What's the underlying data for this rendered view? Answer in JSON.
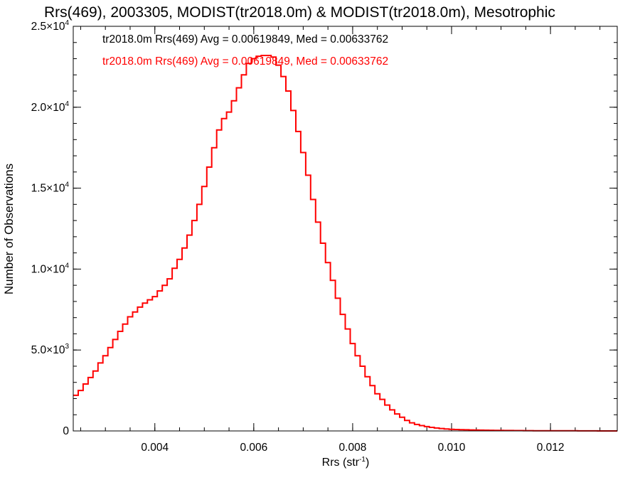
{
  "chart_data": {
    "type": "line",
    "title": "Rrs(469), 2003305, MODIST(tr2018.0m) & MODIST(tr2018.0m), Mesotrophic",
    "xlabel": "Rrs (str",
    "xlabel_sup": "-1",
    "xlabel_close": ")",
    "ylabel": "Number of Observations",
    "xlim": [
      0.00235,
      0.01335
    ],
    "ylim": [
      0,
      25000
    ],
    "x_ticks": [
      {
        "value": 0.004,
        "label": "0.004"
      },
      {
        "value": 0.006,
        "label": "0.006"
      },
      {
        "value": 0.008,
        "label": "0.008"
      },
      {
        "value": 0.01,
        "label": "0.010"
      },
      {
        "value": 0.012,
        "label": "0.012"
      }
    ],
    "y_ticks": [
      {
        "value": 0,
        "mant": "0",
        "exp": ""
      },
      {
        "value": 5000,
        "mant": "5.0×10",
        "exp": "3"
      },
      {
        "value": 10000,
        "mant": "1.0×10",
        "exp": "4"
      },
      {
        "value": 15000,
        "mant": "1.5×10",
        "exp": "4"
      },
      {
        "value": 20000,
        "mant": "2.0×10",
        "exp": "4"
      },
      {
        "value": 25000,
        "mant": "2.5×10",
        "exp": "4"
      }
    ],
    "x_minor_step": 0.0005,
    "y_minor_step": 1000,
    "legend": [
      {
        "text": "tr2018.0m Rrs(469) Avg = 0.00619849, Med = 0.00633762",
        "color": "#000000"
      },
      {
        "text": "tr2018.0m Rrs(469) Avg = 0.00619849, Med = 0.00633762",
        "color": "#ff0000"
      }
    ],
    "series": [
      {
        "name": "tr2018.0m Rrs(469)",
        "color": "#ff0000",
        "step": 0.0001,
        "x": [
          0.0024,
          0.0025,
          0.0026,
          0.0027,
          0.0028,
          0.0029,
          0.003,
          0.0031,
          0.0032,
          0.0033,
          0.0034,
          0.0035,
          0.0036,
          0.0037,
          0.0038,
          0.0039,
          0.004,
          0.0041,
          0.0042,
          0.0043,
          0.0044,
          0.0045,
          0.0046,
          0.0047,
          0.0048,
          0.0049,
          0.005,
          0.0051,
          0.0052,
          0.0053,
          0.0054,
          0.0055,
          0.0056,
          0.0057,
          0.0058,
          0.0059,
          0.006,
          0.0061,
          0.0062,
          0.0063,
          0.0064,
          0.0065,
          0.0066,
          0.0067,
          0.0068,
          0.0069,
          0.007,
          0.0071,
          0.0072,
          0.0073,
          0.0074,
          0.0075,
          0.0076,
          0.0077,
          0.0078,
          0.0079,
          0.008,
          0.0081,
          0.0082,
          0.0083,
          0.0084,
          0.0085,
          0.0086,
          0.0087,
          0.0088,
          0.0089,
          0.009,
          0.0091,
          0.0092,
          0.0093,
          0.0094,
          0.0095,
          0.0096,
          0.0097,
          0.0098,
          0.0099,
          0.01,
          0.0101,
          0.0102,
          0.0103,
          0.0104,
          0.0105,
          0.0106,
          0.0107,
          0.0108,
          0.0109,
          0.011,
          0.0111,
          0.0112,
          0.0113,
          0.0114,
          0.0115,
          0.0116,
          0.0117,
          0.0118,
          0.0119,
          0.012,
          0.0121,
          0.0122,
          0.0123,
          0.0124,
          0.0125,
          0.0126,
          0.0127,
          0.0128,
          0.0129,
          0.013,
          0.0131,
          0.0132,
          0.0133
        ],
        "values": [
          2200,
          2500,
          2900,
          3300,
          3700,
          4200,
          4650,
          5150,
          5650,
          6150,
          6600,
          7050,
          7350,
          7650,
          7900,
          8100,
          8300,
          8650,
          9000,
          9400,
          10050,
          10600,
          11300,
          12100,
          13000,
          14000,
          15100,
          16300,
          17500,
          18600,
          19300,
          19700,
          20400,
          21200,
          22000,
          22700,
          23000,
          23150,
          23200,
          23200,
          23100,
          22600,
          21900,
          21000,
          19800,
          18500,
          17200,
          15800,
          14300,
          12900,
          11600,
          10400,
          9300,
          8200,
          7200,
          6300,
          5400,
          4650,
          4000,
          3350,
          2800,
          2300,
          1950,
          1600,
          1300,
          1050,
          850,
          650,
          500,
          400,
          330,
          270,
          220,
          180,
          150,
          120,
          100,
          90,
          80,
          70,
          60,
          55,
          50,
          45,
          40,
          35,
          30,
          28,
          25,
          22,
          20,
          18,
          16,
          15,
          14,
          13,
          12,
          11,
          10,
          9,
          8,
          7,
          6,
          5,
          4,
          3,
          2,
          2,
          1,
          1
        ]
      }
    ]
  }
}
